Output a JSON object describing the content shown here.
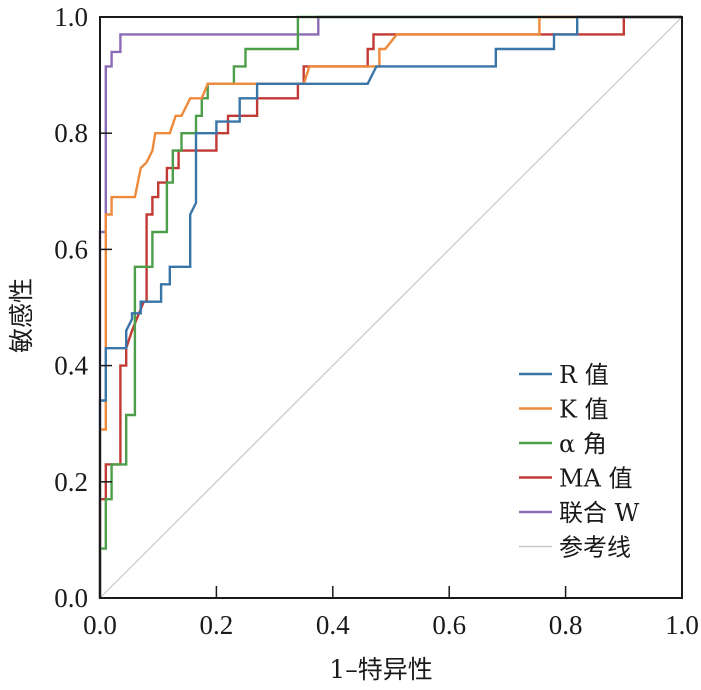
{
  "chart_data": {
    "type": "line",
    "title": "",
    "xlabel": "1–特异性",
    "ylabel": "敏感性",
    "xlim": [
      0,
      1
    ],
    "ylim": [
      0,
      1
    ],
    "grid": false,
    "legend_position": "bottom-right",
    "x_ticks": [
      "0.0",
      "0.2",
      "0.4",
      "0.6",
      "0.8",
      "1.0"
    ],
    "y_ticks": [
      "0.0",
      "0.2",
      "0.4",
      "0.6",
      "0.8",
      "1.0"
    ],
    "series": [
      {
        "name": "R 值",
        "color": "#3a75a8",
        "points": [
          [
            0,
            0
          ],
          [
            0,
            0.34
          ],
          [
            0.01,
            0.34
          ],
          [
            0.01,
            0.43
          ],
          [
            0.045,
            0.43
          ],
          [
            0.045,
            0.46
          ],
          [
            0.055,
            0.48
          ],
          [
            0.055,
            0.49
          ],
          [
            0.07,
            0.49
          ],
          [
            0.07,
            0.51
          ],
          [
            0.105,
            0.51
          ],
          [
            0.105,
            0.54
          ],
          [
            0.12,
            0.54
          ],
          [
            0.12,
            0.57
          ],
          [
            0.155,
            0.57
          ],
          [
            0.155,
            0.66
          ],
          [
            0.165,
            0.68
          ],
          [
            0.165,
            0.8
          ],
          [
            0.2,
            0.8
          ],
          [
            0.2,
            0.82
          ],
          [
            0.24,
            0.82
          ],
          [
            0.24,
            0.86
          ],
          [
            0.27,
            0.86
          ],
          [
            0.27,
            0.885
          ],
          [
            0.46,
            0.885
          ],
          [
            0.475,
            0.915
          ],
          [
            0.68,
            0.915
          ],
          [
            0.68,
            0.945
          ],
          [
            0.78,
            0.945
          ],
          [
            0.78,
            0.97
          ],
          [
            0.82,
            0.97
          ],
          [
            0.82,
            1.0
          ],
          [
            1,
            1
          ]
        ]
      },
      {
        "name": "K 值",
        "color": "#ee8a3c",
        "points": [
          [
            0,
            0
          ],
          [
            0,
            0.29
          ],
          [
            0.01,
            0.29
          ],
          [
            0.01,
            0.66
          ],
          [
            0.02,
            0.66
          ],
          [
            0.02,
            0.69
          ],
          [
            0.06,
            0.69
          ],
          [
            0.07,
            0.74
          ],
          [
            0.08,
            0.75
          ],
          [
            0.09,
            0.77
          ],
          [
            0.095,
            0.8
          ],
          [
            0.12,
            0.8
          ],
          [
            0.13,
            0.83
          ],
          [
            0.14,
            0.83
          ],
          [
            0.155,
            0.86
          ],
          [
            0.175,
            0.86
          ],
          [
            0.185,
            0.885
          ],
          [
            0.35,
            0.885
          ],
          [
            0.36,
            0.915
          ],
          [
            0.48,
            0.915
          ],
          [
            0.48,
            0.945
          ],
          [
            0.49,
            0.945
          ],
          [
            0.51,
            0.97
          ],
          [
            0.755,
            0.97
          ],
          [
            0.755,
            1.0
          ],
          [
            1,
            1
          ]
        ]
      },
      {
        "name": "α 角",
        "color": "#4d9e4a",
        "points": [
          [
            0,
            0
          ],
          [
            0,
            0.085
          ],
          [
            0.01,
            0.085
          ],
          [
            0.01,
            0.17
          ],
          [
            0.02,
            0.17
          ],
          [
            0.02,
            0.23
          ],
          [
            0.045,
            0.23
          ],
          [
            0.045,
            0.315
          ],
          [
            0.06,
            0.315
          ],
          [
            0.06,
            0.57
          ],
          [
            0.09,
            0.57
          ],
          [
            0.09,
            0.63
          ],
          [
            0.115,
            0.63
          ],
          [
            0.115,
            0.715
          ],
          [
            0.125,
            0.715
          ],
          [
            0.125,
            0.77
          ],
          [
            0.14,
            0.77
          ],
          [
            0.14,
            0.8
          ],
          [
            0.165,
            0.8
          ],
          [
            0.165,
            0.83
          ],
          [
            0.175,
            0.83
          ],
          [
            0.175,
            0.86
          ],
          [
            0.185,
            0.86
          ],
          [
            0.185,
            0.885
          ],
          [
            0.23,
            0.885
          ],
          [
            0.23,
            0.915
          ],
          [
            0.25,
            0.915
          ],
          [
            0.25,
            0.945
          ],
          [
            0.34,
            0.945
          ],
          [
            0.34,
            1.0
          ],
          [
            1,
            1
          ]
        ]
      },
      {
        "name": "MA 值",
        "color": "#c23a36",
        "points": [
          [
            0,
            0
          ],
          [
            0,
            0.17
          ],
          [
            0.01,
            0.17
          ],
          [
            0.01,
            0.23
          ],
          [
            0.035,
            0.23
          ],
          [
            0.035,
            0.4
          ],
          [
            0.045,
            0.4
          ],
          [
            0.045,
            0.43
          ],
          [
            0.055,
            0.46
          ],
          [
            0.075,
            0.51
          ],
          [
            0.08,
            0.51
          ],
          [
            0.08,
            0.66
          ],
          [
            0.09,
            0.66
          ],
          [
            0.09,
            0.69
          ],
          [
            0.1,
            0.69
          ],
          [
            0.1,
            0.715
          ],
          [
            0.115,
            0.715
          ],
          [
            0.115,
            0.74
          ],
          [
            0.135,
            0.74
          ],
          [
            0.135,
            0.77
          ],
          [
            0.2,
            0.77
          ],
          [
            0.2,
            0.8
          ],
          [
            0.22,
            0.8
          ],
          [
            0.22,
            0.83
          ],
          [
            0.27,
            0.83
          ],
          [
            0.27,
            0.86
          ],
          [
            0.34,
            0.86
          ],
          [
            0.34,
            0.885
          ],
          [
            0.35,
            0.885
          ],
          [
            0.35,
            0.915
          ],
          [
            0.46,
            0.915
          ],
          [
            0.46,
            0.945
          ],
          [
            0.47,
            0.945
          ],
          [
            0.47,
            0.97
          ],
          [
            0.9,
            0.97
          ],
          [
            0.9,
            1.0
          ],
          [
            1,
            1
          ]
        ]
      },
      {
        "name": "联合 W",
        "color": "#8b6bb5",
        "points": [
          [
            0,
            0
          ],
          [
            0,
            0.63
          ],
          [
            0.01,
            0.63
          ],
          [
            0.01,
            0.915
          ],
          [
            0.02,
            0.915
          ],
          [
            0.02,
            0.94
          ],
          [
            0.035,
            0.94
          ],
          [
            0.035,
            0.97
          ],
          [
            0.375,
            0.97
          ],
          [
            0.375,
            1.0
          ],
          [
            1,
            1
          ]
        ]
      },
      {
        "name": "参考线",
        "color": "#c8c8c8",
        "points": [
          [
            0,
            0
          ],
          [
            1,
            1
          ]
        ]
      }
    ]
  }
}
